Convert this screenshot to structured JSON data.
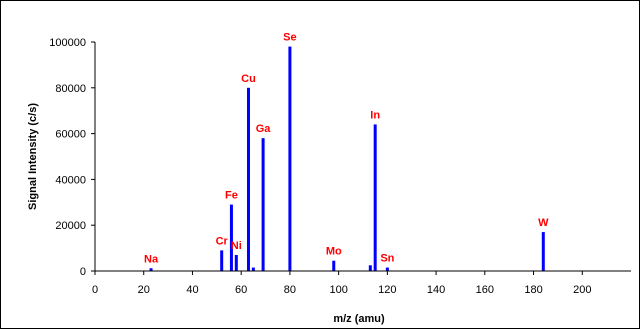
{
  "chart_data": {
    "type": "bar",
    "xlabel": "m/z (amu)",
    "ylabel": "Signal Intensity (c/s)",
    "xlim": [
      0,
      220
    ],
    "ylim": [
      0,
      100000
    ],
    "x_ticks": [
      0,
      20,
      40,
      60,
      80,
      100,
      120,
      140,
      160,
      180,
      200
    ],
    "y_ticks": [
      0,
      20000,
      40000,
      60000,
      80000,
      100000
    ],
    "grid": false,
    "legend": "none",
    "bar_color": "#0000ff",
    "label_color": "#ff0000",
    "peaks": [
      {
        "x": 23,
        "y": 1200
      },
      {
        "x": 52,
        "y": 9000
      },
      {
        "x": 56,
        "y": 29000
      },
      {
        "x": 58,
        "y": 7000
      },
      {
        "x": 63,
        "y": 80000
      },
      {
        "x": 65,
        "y": 1500
      },
      {
        "x": 69,
        "y": 58000
      },
      {
        "x": 80,
        "y": 98000
      },
      {
        "x": 98,
        "y": 4500
      },
      {
        "x": 113,
        "y": 2500
      },
      {
        "x": 115,
        "y": 64000
      },
      {
        "x": 120,
        "y": 1500
      },
      {
        "x": 184,
        "y": 17000
      }
    ],
    "annotations": [
      {
        "label": "Na",
        "x": 23,
        "y": 1200
      },
      {
        "label": "Cr",
        "x": 52,
        "y": 9000
      },
      {
        "label": "Fe",
        "x": 56,
        "y": 29000
      },
      {
        "label": "Ni",
        "x": 58,
        "y": 7000
      },
      {
        "label": "Cu",
        "x": 63,
        "y": 80000
      },
      {
        "label": "Ga",
        "x": 69,
        "y": 58000
      },
      {
        "label": "Se",
        "x": 80,
        "y": 98000
      },
      {
        "label": "Mo",
        "x": 98,
        "y": 4500
      },
      {
        "label": "In",
        "x": 115,
        "y": 64000
      },
      {
        "label": "Sn",
        "x": 120,
        "y": 1500
      },
      {
        "label": "W",
        "x": 184,
        "y": 17000
      }
    ]
  }
}
